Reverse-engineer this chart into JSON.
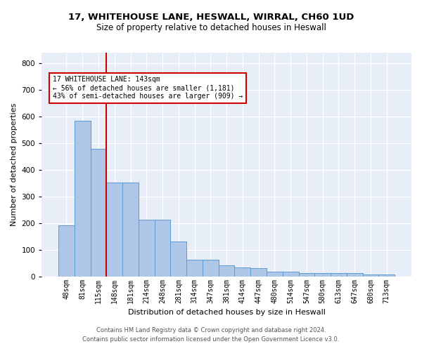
{
  "title_line1": "17, WHITEHOUSE LANE, HESWALL, WIRRAL, CH60 1UD",
  "title_line2": "Size of property relative to detached houses in Heswall",
  "xlabel": "Distribution of detached houses by size in Heswall",
  "ylabel": "Number of detached properties",
  "bin_labels": [
    "48sqm",
    "81sqm",
    "115sqm",
    "148sqm",
    "181sqm",
    "214sqm",
    "248sqm",
    "281sqm",
    "314sqm",
    "347sqm",
    "381sqm",
    "414sqm",
    "447sqm",
    "480sqm",
    "514sqm",
    "547sqm",
    "580sqm",
    "613sqm",
    "647sqm",
    "680sqm",
    "713sqm"
  ],
  "bar_heights": [
    192,
    585,
    480,
    352,
    352,
    213,
    213,
    130,
    63,
    63,
    40,
    33,
    32,
    17,
    17,
    11,
    11,
    11,
    11,
    8,
    8
  ],
  "bar_color": "#aec6e8",
  "bar_edge_color": "#5b9bd5",
  "bg_color": "#e8eef8",
  "grid_color": "#ffffff",
  "vline_color": "#cc0000",
  "vline_x_idx": 2,
  "annotation_text": "17 WHITEHOUSE LANE: 143sqm\n← 56% of detached houses are smaller (1,181)\n43% of semi-detached houses are larger (909) →",
  "annotation_box_color": "#cc0000",
  "footer_line1": "Contains HM Land Registry data © Crown copyright and database right 2024.",
  "footer_line2": "Contains public sector information licensed under the Open Government Licence v3.0.",
  "ylim": [
    0,
    840
  ],
  "yticks": [
    0,
    100,
    200,
    300,
    400,
    500,
    600,
    700,
    800
  ],
  "title1_fontsize": 9.5,
  "title2_fontsize": 8.5,
  "ylabel_fontsize": 8,
  "xlabel_fontsize": 8,
  "tick_fontsize": 7,
  "footer_fontsize": 6,
  "annot_fontsize": 7
}
